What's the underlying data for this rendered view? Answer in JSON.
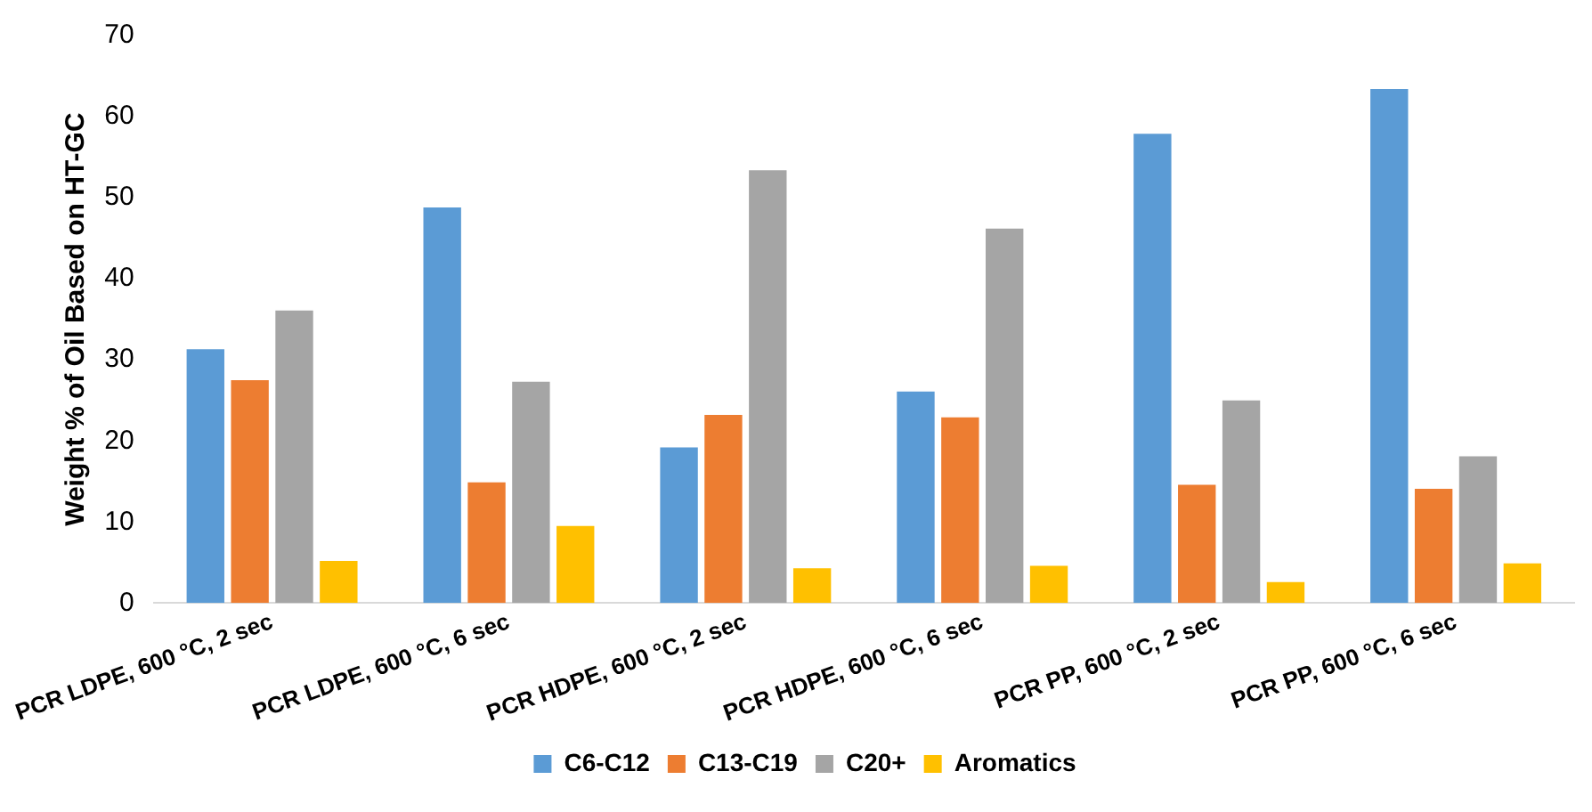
{
  "chart_data": {
    "type": "bar",
    "ylabel": "Weight % of Oil Based on HT-GC",
    "categories": [
      "PCR LDPE, 600 °C, 2 sec",
      "PCR LDPE, 600 °C, 6 sec",
      "PCR HDPE, 600 °C, 2 sec",
      "PCR HDPE, 600 °C, 6 sec",
      "PCR PP, 600 °C, 2 sec",
      "PCR PP, 600 °C, 6 sec"
    ],
    "series": [
      {
        "name": "C6-C12",
        "color": "#5b9bd5",
        "values": [
          31.3,
          48.8,
          19.2,
          26.1,
          57.9,
          63.4
        ]
      },
      {
        "name": "C13-C19",
        "color": "#ed7d31",
        "values": [
          27.5,
          14.9,
          23.2,
          22.9,
          14.6,
          14.1
        ]
      },
      {
        "name": "C20+",
        "color": "#a5a5a5",
        "values": [
          36.1,
          27.3,
          53.4,
          46.2,
          25.0,
          18.1
        ]
      },
      {
        "name": "Aromatics",
        "color": "#ffc000",
        "values": [
          5.2,
          9.5,
          4.3,
          4.6,
          2.6,
          4.9
        ]
      }
    ],
    "ylim": [
      0,
      70
    ],
    "yticks": [
      0,
      10,
      20,
      30,
      40,
      50,
      60,
      70
    ],
    "grid": false,
    "legend": "bottom"
  }
}
